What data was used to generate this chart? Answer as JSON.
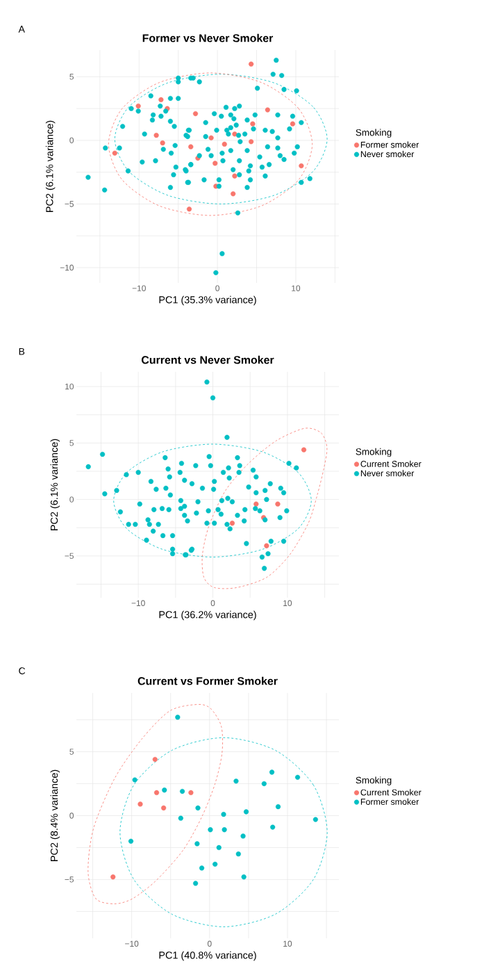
{
  "chart_data": [
    {
      "type": "scatter",
      "title": "Former vs Never Smoker",
      "xlabel": "PC1 (35.3% variance)",
      "ylabel": "PC2 (6.1% variance)",
      "legend_title": "Smoking",
      "annotations": [
        "A"
      ],
      "xlim": [
        -18.0,
        15.5
      ],
      "ylim": [
        -11.2,
        7.1
      ],
      "xticks": [
        {
          "value": -15,
          "label": null
        },
        {
          "value": -10,
          "label": "−10"
        },
        {
          "value": -5,
          "label": null
        },
        0,
        {
          "value": 5,
          "label": null
        },
        10,
        {
          "value": 15,
          "label": null
        }
      ],
      "yticks": [
        {
          "value": -10,
          "label": "−10"
        },
        {
          "value": -7.5,
          "label": null
        },
        {
          "value": -5,
          "label": "−5"
        },
        {
          "value": -2.5,
          "label": null
        },
        0,
        {
          "value": 2.5,
          "label": null
        },
        5
      ],
      "grid": true,
      "legend": "right",
      "series": [
        {
          "name": "Former smoker",
          "color": "#f8766d",
          "x": [
            -13.1,
            -10.1,
            -7.2,
            -6.4,
            -7.8,
            -7.0,
            -3.6,
            -3.4,
            4.3,
            6.4,
            -2.8,
            4.5,
            9.6,
            2.2,
            -0.8,
            0.9,
            4.3,
            -2.5,
            -0.3,
            2.2,
            10.7,
            -0.2,
            2.0
          ],
          "values": [
            -1.0,
            2.7,
            3.2,
            2.5,
            0.4,
            -0.2,
            -5.4,
            -0.5,
            6.0,
            2.4,
            2.1,
            1.3,
            1.3,
            0.5,
            0.2,
            -0.3,
            -0.1,
            -1.4,
            -1.8,
            -2.8,
            -2.0,
            -3.6,
            -4.2
          ]
        },
        {
          "name": "Never smoker",
          "color": "#00bfc4",
          "x": [
            -16.5,
            -14.4,
            -14.3,
            -12.5,
            -12.1,
            -11.0,
            -10.1,
            -11.4,
            -9.6,
            -9.3,
            -8.5,
            -8.3,
            -8.2,
            -7.9,
            -7.3,
            -7.2,
            -6.9,
            -6.6,
            -6.0,
            -6.0,
            -5.5,
            -5.0,
            -5.0,
            -5.0,
            -3.4,
            -5.9,
            -5.4,
            -5.3,
            -5.6,
            -6.0,
            -3.8,
            -4.1,
            -3.4,
            -3.6,
            -3.8,
            -3.1,
            -2.3,
            7.5,
            7.1,
            8.2,
            5.1,
            8.5,
            10.1,
            2.8,
            2.2,
            1.1,
            -0.4,
            0.5,
            1.7,
            3.8,
            4.8,
            7.7,
            9.6,
            10.7,
            9.2,
            -1.5,
            -0.1,
            1.7,
            1.4,
            2.7,
            3.5,
            6.1,
            7.0,
            4.6,
            -3.7,
            -4.0,
            -1.5,
            2.9,
            7.7,
            6.4,
            7.7,
            8.0,
            8.5,
            9.8,
            10.2,
            3.8,
            1.7,
            0.6,
            -1.2,
            -0.8,
            -2.3,
            0.7,
            2.8,
            5.4,
            5.7,
            6.6,
            4.2,
            4.0,
            6.1,
            2.0,
            2.8,
            -3.4,
            -4.0,
            -3.7,
            -1.7,
            0.2,
            0.2,
            4.2,
            3.8,
            10.7,
            11.8,
            2.6,
            0.6,
            -0.2,
            2.1,
            2.4,
            1.2
          ],
          "values": [
            -2.9,
            -3.9,
            -0.6,
            -0.6,
            1.1,
            2.5,
            2.3,
            -2.4,
            -1.7,
            0.5,
            3.5,
            1.6,
            2.0,
            -1.6,
            2.7,
            1.9,
            -0.7,
            2.3,
            3.3,
            1.5,
            1.1,
            3.3,
            4.9,
            4.6,
            4.9,
            -1.0,
            -0.4,
            -2.1,
            -2.7,
            -3.7,
            -3.3,
            -2.3,
            -1.9,
            0.8,
            0.3,
            4.9,
            4.6,
            6.3,
            5.2,
            5.1,
            4.1,
            4.0,
            3.9,
            2.7,
            2.5,
            2.6,
            2.1,
            1.9,
            2.0,
            1.6,
            2.0,
            2.0,
            1.9,
            1.4,
            0.9,
            1.4,
            0.8,
            1.0,
            0.5,
            0.4,
            0.5,
            0.8,
            0.7,
            0.9,
            0.8,
            0.4,
            0.3,
            -0.1,
            0.2,
            -0.5,
            -0.6,
            -1.2,
            -1.5,
            -1.0,
            -0.5,
            -0.8,
            -0.8,
            -1.0,
            -0.7,
            -1.2,
            -1.2,
            -1.6,
            -1.6,
            -1.3,
            -2.1,
            -1.9,
            -2.0,
            -2.4,
            -2.8,
            -2.3,
            -2.7,
            -1.9,
            -2.4,
            -3.3,
            -3.1,
            -3.1,
            -3.6,
            -3.1,
            -3.7,
            -3.3,
            -3.0,
            -5.7,
            -8.9,
            -10.4,
            1.7,
            1.2,
            0.8
          ]
        }
      ]
    },
    {
      "type": "scatter",
      "title": "Current vs Never Smoker",
      "xlabel": "PC1 (36.2% variance)",
      "ylabel": "PC2 (6.1% variance)",
      "legend_title": "Smoking",
      "annotations": [
        "B"
      ],
      "xlim": [
        -18.3,
        16.9
      ],
      "ylim": [
        -8.7,
        11.3
      ],
      "xticks": [
        {
          "value": -15,
          "label": null
        },
        {
          "value": -10,
          "label": "−10"
        },
        {
          "value": -5,
          "label": null
        },
        0,
        {
          "value": 5,
          "label": null
        },
        10,
        {
          "value": 15,
          "label": null
        }
      ],
      "yticks": [
        {
          "value": -7.5,
          "label": null
        },
        {
          "value": -5,
          "label": "−5"
        },
        {
          "value": -2.5,
          "label": null
        },
        0,
        {
          "value": 2.5,
          "label": null
        },
        5,
        {
          "value": 7.5,
          "label": null
        },
        10
      ],
      "grid": true,
      "legend": "right",
      "series": [
        {
          "name": "Current Smoker",
          "color": "#f8766d",
          "x": [
            12.2,
            8.7,
            5.8,
            6.8,
            2.6,
            7.2
          ],
          "values": [
            4.4,
            -0.4,
            -0.4,
            -1.6,
            -2.1,
            -4.1
          ]
        },
        {
          "name": "Never smoker",
          "color": "#00bfc4",
          "x": [
            -16.7,
            -14.8,
            -14.5,
            -12.9,
            -12.4,
            -11.6,
            -11.3,
            -10.4,
            -10.0,
            -9.8,
            -8.9,
            -8.7,
            -8.5,
            -8.3,
            -8.0,
            -7.9,
            -7.6,
            -7.3,
            -6.8,
            -6.7,
            -6.4,
            -6.3,
            -6.0,
            -5.8,
            -5.7,
            -5.9,
            -5.4,
            -5.4,
            -5.4,
            -4.2,
            -4.4,
            -3.8,
            -4.3,
            -4.3,
            -3.8,
            -3.8,
            -3.4,
            -3.6,
            -2.9,
            -2.8,
            -0.8,
            0.0,
            1.9,
            -0.5,
            -0.3,
            -2.3,
            1.4,
            2.1,
            3.3,
            3.6,
            2.2,
            3.5,
            5.4,
            5.8,
            4.8,
            5.8,
            7.7,
            9.1,
            9.5,
            7.0,
            7.2,
            10.2,
            11.2,
            9.9,
            9.0,
            7.0,
            6.3,
            5.7,
            4.3,
            3.3,
            4.2,
            2.3,
            1.9,
            1.1,
            0.7,
            1.2,
            2.0,
            2.6,
            0.2,
            -0.8,
            -2.2,
            -2.0,
            -1.4,
            0.2,
            0.1,
            -0.6,
            4.5,
            7.8,
            9.5,
            7.4,
            6.6,
            6.9,
            -2.8,
            -3.7
          ],
          "values": [
            2.9,
            4.0,
            0.5,
            0.8,
            -1.1,
            2.2,
            -2.2,
            -2.2,
            2.4,
            -0.4,
            -3.6,
            -1.8,
            -2.2,
            1.6,
            -2.8,
            -0.9,
            0.9,
            -2.2,
            -0.8,
            -3.2,
            3.7,
            1.0,
            2.7,
            2.0,
            0.4,
            -0.9,
            -3.2,
            -4.4,
            -4.8,
            3.2,
            2.4,
            1.7,
            -0.1,
            -0.8,
            -0.6,
            -1.4,
            -1.9,
            -4.9,
            -4.5,
            1.4,
            10.4,
            9.0,
            5.5,
            3.8,
            3.0,
            3.0,
            2.4,
            2.8,
            3.7,
            3.0,
            1.9,
            2.4,
            2.6,
            2.0,
            1.1,
            0.6,
            1.4,
            1.0,
            0.6,
            0.8,
            0.0,
            3.2,
            2.8,
            -1.0,
            -1.6,
            -1.8,
            -1.0,
            -0.8,
            -0.9,
            -1.4,
            -1.9,
            -2.6,
            -2.2,
            -1.3,
            -0.9,
            -0.1,
            0.1,
            -0.2,
            -2.1,
            -2.1,
            -1.2,
            -0.2,
            1.0,
            1.6,
            0.9,
            -1.0,
            -3.9,
            -3.7,
            -3.7,
            -4.8,
            -5.1,
            -6.1,
            -4.4,
            -4.9
          ]
        }
      ]
    },
    {
      "type": "scatter",
      "title": "Current vs Former Smoker",
      "xlabel": "PC1 (40.8% variance)",
      "ylabel": "PC2 (8.4% variance)",
      "legend_title": "Smoking",
      "annotations": [
        "C"
      ],
      "xlim": [
        -17.1,
        16.6
      ],
      "ylim": [
        -9.6,
        9.6
      ],
      "xticks": [
        {
          "value": -15,
          "label": null
        },
        {
          "value": -10,
          "label": "−10"
        },
        {
          "value": -5,
          "label": null
        },
        0,
        {
          "value": 5,
          "label": null
        },
        10,
        {
          "value": 15,
          "label": null
        }
      ],
      "yticks": [
        {
          "value": -7.5,
          "label": null
        },
        {
          "value": -5,
          "label": "−5"
        },
        {
          "value": -2.5,
          "label": null
        },
        0,
        {
          "value": 2.5,
          "label": null
        },
        5,
        {
          "value": 7.5,
          "label": null
        }
      ],
      "grid": true,
      "legend": "right",
      "series": [
        {
          "name": "Current Smoker",
          "color": "#f8766d",
          "x": [
            -7.0,
            -6.8,
            -2.4,
            -8.9,
            -5.9,
            -12.4
          ],
          "values": [
            4.4,
            1.8,
            1.8,
            0.9,
            0.6,
            -4.8
          ]
        },
        {
          "name": "Former smoker",
          "color": "#00bfc4",
          "x": [
            -4.1,
            -9.6,
            -5.8,
            -3.5,
            -1.5,
            -3.7,
            -10.1,
            3.4,
            7.0,
            8.0,
            11.3,
            8.8,
            4.7,
            1.8,
            13.6,
            8.1,
            0.1,
            1.9,
            4.3,
            -1.6,
            1.2,
            3.7,
            -1.0,
            0.7,
            4.4,
            -1.8
          ],
          "values": [
            7.7,
            2.8,
            2.0,
            1.9,
            0.6,
            -0.2,
            -2.0,
            2.7,
            2.5,
            3.4,
            3.0,
            0.7,
            0.3,
            0.1,
            -0.3,
            -0.9,
            -1.1,
            -1.1,
            -1.6,
            -2.2,
            -2.5,
            -3.0,
            -4.1,
            -3.8,
            -4.8,
            -5.3
          ]
        }
      ]
    }
  ]
}
